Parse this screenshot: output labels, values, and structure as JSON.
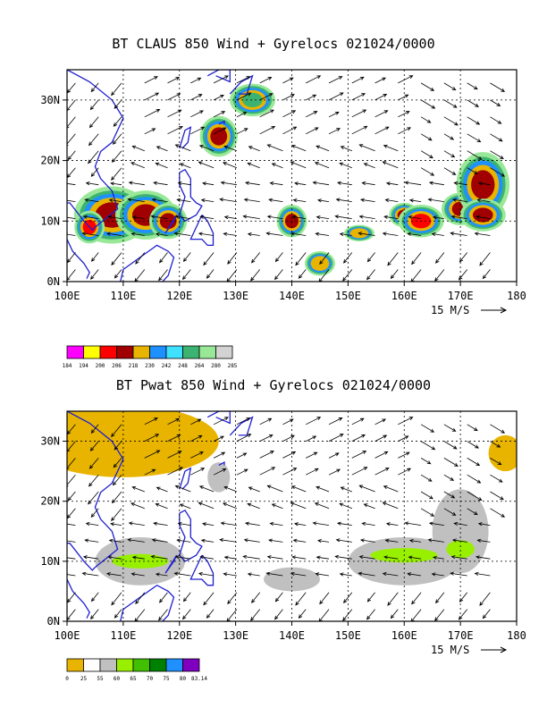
{
  "chart_data": [
    {
      "type": "heatmap",
      "title": "BT CLAUS 850 Wind + Gyrelocs 021024/0000",
      "x_ticks": [
        "100E",
        "110E",
        "120E",
        "130E",
        "140E",
        "150E",
        "160E",
        "170E",
        "180"
      ],
      "y_ticks": [
        "0N",
        "10N",
        "20N",
        "30N"
      ],
      "xlim": [
        100,
        180
      ],
      "ylim": [
        0,
        35
      ],
      "grid": true,
      "wind_scale_label": "15 M/S",
      "colorbar": {
        "labels": [
          "184",
          "194",
          "200",
          "206",
          "218",
          "230",
          "242",
          "248",
          "264",
          "280",
          "285"
        ],
        "colors": [
          "#ff00ff",
          "#ffff00",
          "#ff0000",
          "#a00000",
          "#e8b400",
          "#1e90ff",
          "#40e0ff",
          "#3cb371",
          "#98e898",
          "#d3d3d3"
        ]
      },
      "cloud_regions": [
        {
          "lon": 108,
          "lat": 11,
          "rlon": 5,
          "rlat": 3.5,
          "core": "#a00000"
        },
        {
          "lon": 114,
          "lat": 11,
          "rlon": 4,
          "rlat": 3,
          "core": "#a00000"
        },
        {
          "lon": 118,
          "lat": 10,
          "rlon": 2.5,
          "rlat": 2.2,
          "core": "#a00000"
        },
        {
          "lon": 104,
          "lat": 9,
          "rlon": 2,
          "rlat": 2,
          "core": "#ff0000"
        },
        {
          "lon": 127,
          "lat": 24,
          "rlon": 2.5,
          "rlat": 2.5,
          "core": "#a00000"
        },
        {
          "lon": 140,
          "lat": 10,
          "rlon": 2,
          "rlat": 2,
          "core": "#a00000"
        },
        {
          "lon": 152,
          "lat": 8,
          "rlon": 2,
          "rlat": 1,
          "core": "#e8b400"
        },
        {
          "lon": 160,
          "lat": 11,
          "rlon": 2,
          "rlat": 1.5,
          "core": "#a00000"
        },
        {
          "lon": 163,
          "lat": 10,
          "rlon": 3,
          "rlat": 2,
          "core": "#ff0000"
        },
        {
          "lon": 170,
          "lat": 12,
          "rlon": 2.5,
          "rlat": 2,
          "core": "#a00000"
        },
        {
          "lon": 174,
          "lat": 16,
          "rlon": 3.5,
          "rlat": 4,
          "core": "#a00000"
        },
        {
          "lon": 174,
          "lat": 11,
          "rlon": 3,
          "rlat": 2,
          "core": "#a00000"
        },
        {
          "lon": 133,
          "lat": 30,
          "rlon": 3,
          "rlat": 2,
          "core": "#3cb371"
        },
        {
          "lon": 145,
          "lat": 3,
          "rlon": 2,
          "rlat": 1.5,
          "core": "#e8b400"
        }
      ]
    },
    {
      "type": "heatmap",
      "title": "BT Pwat 850 Wind + Gyrelocs 021024/0000",
      "x_ticks": [
        "100E",
        "110E",
        "120E",
        "130E",
        "140E",
        "150E",
        "160E",
        "170E",
        "180"
      ],
      "y_ticks": [
        "0N",
        "10N",
        "20N",
        "30N"
      ],
      "xlim": [
        100,
        180
      ],
      "ylim": [
        0,
        35
      ],
      "grid": true,
      "wind_scale_label": "15 M/S",
      "colorbar": {
        "labels": [
          "0",
          "25",
          "55",
          "60",
          "65",
          "70",
          "75",
          "80",
          "83.14"
        ],
        "colors": [
          "#e8b400",
          "#ffffff",
          "#c0c0c0",
          "#98f000",
          "#40c000",
          "#008000",
          "#1e90ff",
          "#8000c0"
        ]
      },
      "moisture_regions": [
        {
          "lon": 113,
          "lat": 10,
          "rlon": 8,
          "rlat": 4,
          "level": "#c0c0c0"
        },
        {
          "lon": 113,
          "lat": 10,
          "rlon": 5,
          "rlat": 1.2,
          "level": "#98f000"
        },
        {
          "lon": 127,
          "lat": 24,
          "rlon": 2,
          "rlat": 2.5,
          "level": "#c0c0c0"
        },
        {
          "lon": 140,
          "lat": 7,
          "rlon": 5,
          "rlat": 2,
          "level": "#c0c0c0"
        },
        {
          "lon": 160,
          "lat": 10,
          "rlon": 10,
          "rlat": 4,
          "level": "#c0c0c0"
        },
        {
          "lon": 160,
          "lat": 11,
          "rlon": 6,
          "rlat": 1.2,
          "level": "#98f000"
        },
        {
          "lon": 170,
          "lat": 15,
          "rlon": 5,
          "rlat": 7,
          "level": "#c0c0c0"
        },
        {
          "lon": 170,
          "lat": 12,
          "rlon": 2.5,
          "rlat": 1.5,
          "level": "#98f000"
        }
      ],
      "dry_regions": [
        {
          "lon": 110,
          "lat": 30,
          "rlon": 17,
          "rlat": 6
        },
        {
          "lon": 178,
          "lat": 28,
          "rlon": 3,
          "rlat": 3
        }
      ]
    }
  ]
}
